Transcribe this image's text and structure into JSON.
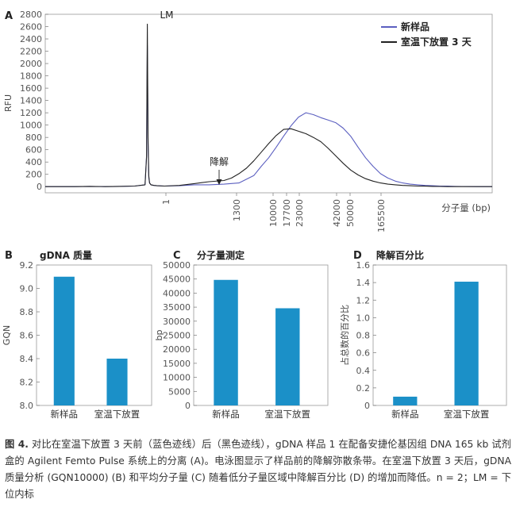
{
  "chart_data": [
    {
      "type": "line",
      "panel": "A",
      "ylabel": "RFU",
      "xlabel": "分子量 (bp)",
      "ylim": [
        -100,
        2800
      ],
      "yticks": [
        0,
        200,
        400,
        600,
        800,
        1000,
        1200,
        1400,
        1600,
        1800,
        2000,
        2200,
        2400,
        2600,
        2800
      ],
      "xtick_labels": [
        "1",
        "1300",
        "10000",
        "17700",
        "23000",
        "42000",
        "50000",
        "165500"
      ],
      "annotations": [
        "LM",
        "降解"
      ],
      "legend_position": "top-right",
      "series": [
        {
          "name": "新样品",
          "color": "#5b5fc0",
          "x": [
            0,
            20,
            40,
            60,
            80,
            100,
            120,
            134,
            136,
            137,
            138,
            139,
            140,
            142,
            146,
            150,
            160,
            180,
            200,
            220,
            240,
            260,
            280,
            290,
            300,
            310,
            320,
            330,
            340,
            350,
            360,
            370,
            380,
            390,
            400,
            410,
            420,
            430,
            440,
            450,
            460,
            470,
            480,
            490,
            500,
            510,
            520,
            530,
            540,
            550,
            560,
            570,
            580,
            590,
            600
          ],
          "y": [
            0,
            0,
            0,
            5,
            0,
            5,
            10,
            30,
            500,
            2290,
            700,
            150,
            60,
            30,
            20,
            15,
            10,
            15,
            30,
            30,
            40,
            60,
            180,
            330,
            470,
            640,
            820,
            990,
            1130,
            1200,
            1170,
            1120,
            1080,
            1040,
            950,
            820,
            640,
            470,
            330,
            210,
            140,
            90,
            60,
            40,
            30,
            20,
            15,
            10,
            8,
            5,
            3,
            2,
            0,
            0,
            0
          ]
        },
        {
          "name": "室温下放置 3 天",
          "color": "#222222",
          "x": [
            0,
            20,
            40,
            60,
            80,
            100,
            120,
            134,
            136,
            137,
            138,
            139,
            140,
            142,
            146,
            150,
            160,
            180,
            200,
            220,
            240,
            250,
            260,
            270,
            280,
            290,
            300,
            310,
            320,
            330,
            340,
            350,
            360,
            370,
            380,
            390,
            400,
            410,
            420,
            430,
            440,
            450,
            460,
            470,
            480,
            490,
            500,
            510,
            520,
            530,
            540,
            550,
            560,
            570,
            580,
            590,
            600
          ],
          "y": [
            0,
            0,
            0,
            5,
            0,
            5,
            10,
            30,
            480,
            2640,
            800,
            180,
            60,
            30,
            20,
            15,
            10,
            20,
            50,
            80,
            100,
            140,
            210,
            300,
            420,
            560,
            700,
            830,
            930,
            940,
            900,
            860,
            800,
            730,
            620,
            500,
            380,
            270,
            190,
            130,
            90,
            60,
            40,
            30,
            20,
            15,
            10,
            8,
            5,
            3,
            0,
            0,
            0,
            0,
            0,
            0,
            0
          ]
        }
      ]
    },
    {
      "type": "bar",
      "panel": "B",
      "title": "gDNA 质量",
      "ylabel": "GQN",
      "categories": [
        "新样品",
        "室温下放置"
      ],
      "values": [
        9.1,
        8.4
      ],
      "ylim": [
        8.0,
        9.2
      ],
      "yticks": [
        "8.0",
        "8.2",
        "8.4",
        "8.6",
        "8.8",
        "9.0",
        "9.2"
      ],
      "color": "#1b90c8"
    },
    {
      "type": "bar",
      "panel": "C",
      "title": "分子量测定",
      "ylabel": "bp",
      "categories": [
        "新样品",
        "室温下放置"
      ],
      "values": [
        44700,
        34600
      ],
      "ylim": [
        0,
        50000
      ],
      "yticks": [
        "0",
        "5000",
        "10000",
        "15000",
        "20000",
        "25000",
        "30000",
        "35000",
        "40000",
        "45000",
        "50000"
      ],
      "color": "#1b90c8"
    },
    {
      "type": "bar",
      "panel": "D",
      "title": "降解百分比",
      "ylabel": "占总数的百分比",
      "categories": [
        "新样品",
        "室温下放置"
      ],
      "values": [
        0.1,
        1.41
      ],
      "ylim": [
        0,
        1.6
      ],
      "yticks": [
        "0",
        "0.2",
        "0.4",
        "0.6",
        "0.8",
        "1.0",
        "1.2",
        "1.4",
        "1.6"
      ],
      "color": "#1b90c8"
    }
  ],
  "caption": {
    "figure_label": "图 4.",
    "text": "对比在室温下放置 3 天前（蓝色迹线）后（黑色迹线），gDNA 样品 1 在配备安捷伦基因组 DNA 165 kb 试剂盒的 Agilent Femto Pulse 系统上的分离 (A)。电泳图显示了样品前的降解弥散条带。在室温下放置 3 天后，gDNA 质量分析 (GQN10000) (B) 和平均分子量 (C) 随着低分子量区域中降解百分比 (D) 的增加而降低。n = 2；LM = 下位内标"
  }
}
